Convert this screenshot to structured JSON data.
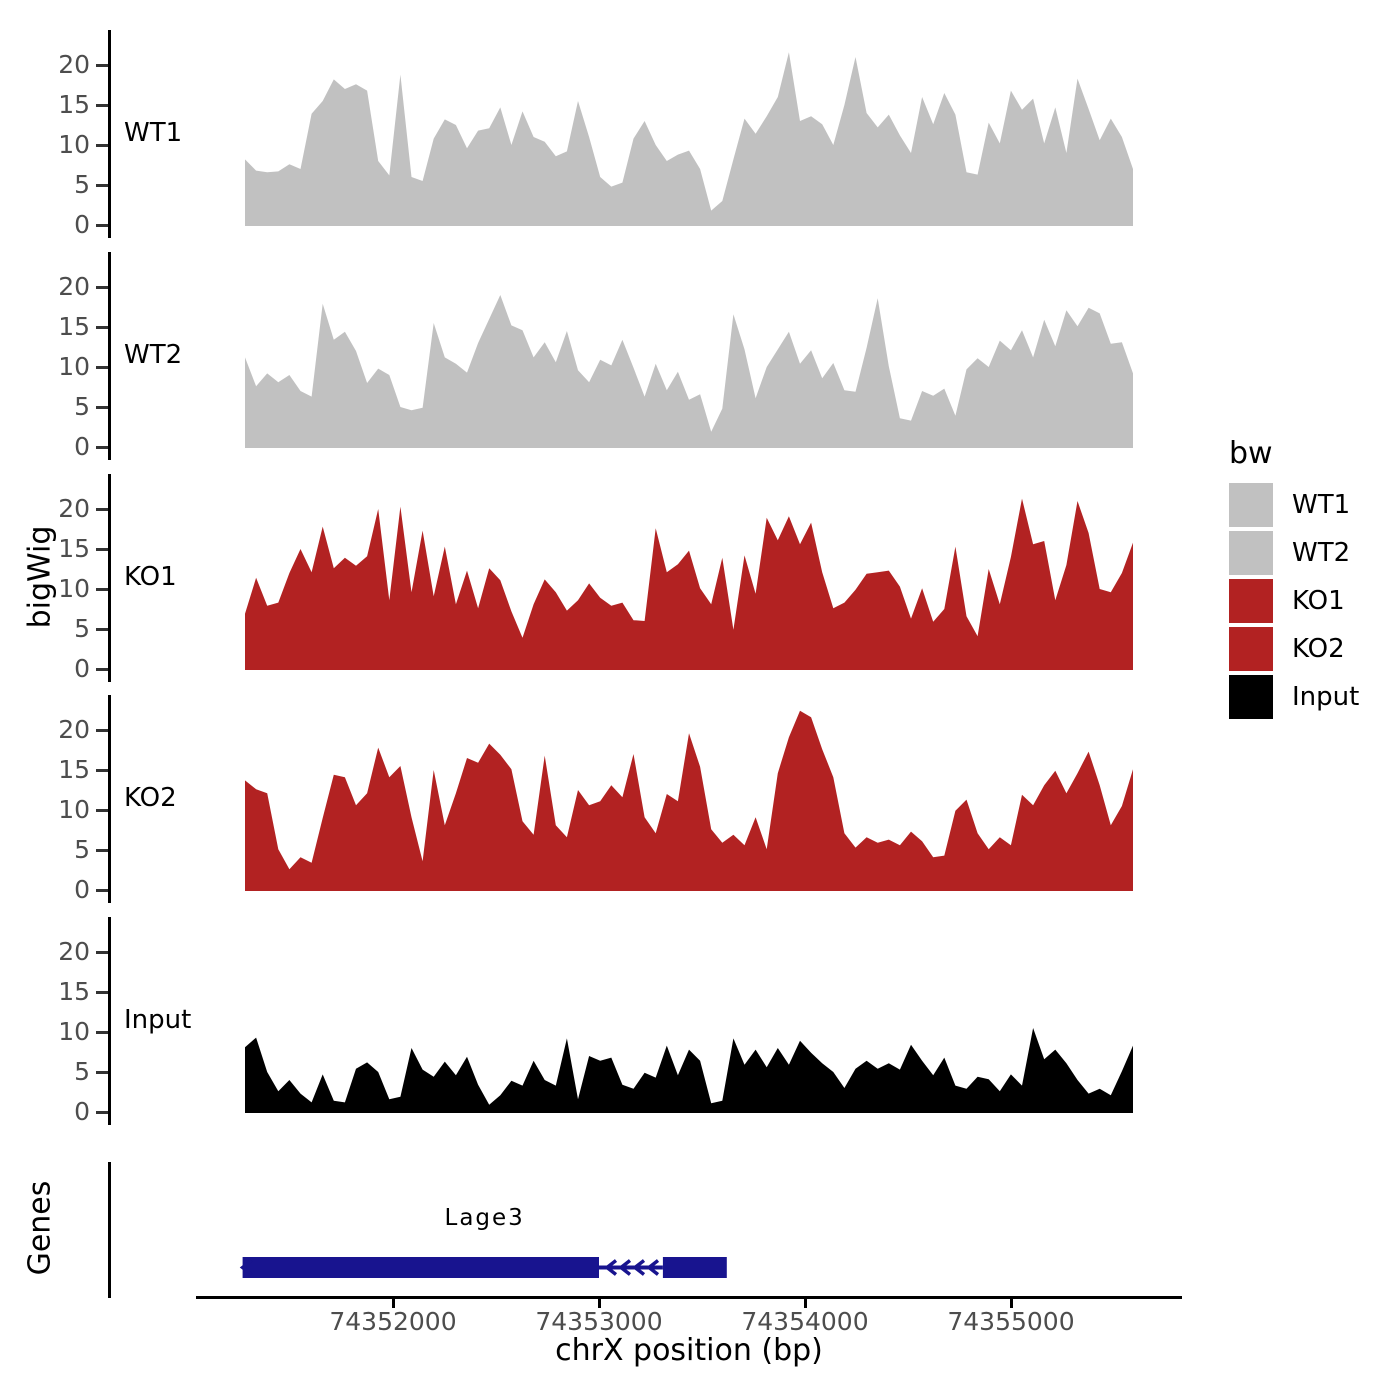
{
  "figure": {
    "ylab": "bigWig",
    "genes_lab": "Genes",
    "xlab": "chrX position (bp)"
  },
  "legend": {
    "title": "bw",
    "items": [
      {
        "label": "WT1",
        "color": "#C1C1C1"
      },
      {
        "label": "WT2",
        "color": "#C1C1C1"
      },
      {
        "label": "KO1",
        "color": "#B22222"
      },
      {
        "label": "KO2",
        "color": "#B22222"
      },
      {
        "label": "Input",
        "color": "#000000"
      }
    ]
  },
  "axis": {
    "y_ticks": [
      0,
      5,
      10,
      15,
      20
    ],
    "x_ticks": [
      74352000,
      74353000,
      74354000,
      74355000
    ]
  },
  "chart_data": {
    "type": "area",
    "title": "",
    "xlabel": "chrX position (bp)",
    "ylabel": "bigWig",
    "chromosome": "chrX",
    "x_range_bp": [
      74351280,
      74355590
    ],
    "ylim": [
      0,
      20
    ],
    "grid": false,
    "legend_position": "right",
    "facets": [
      "WT1",
      "WT2",
      "KO1",
      "KO2",
      "Input",
      "Genes"
    ],
    "series": [
      {
        "name": "WT1",
        "color": "#C1C1C1",
        "values": [
          8.2,
          6.8,
          6.6,
          6.7,
          7.6,
          7.0,
          13.9,
          15.5,
          18.2,
          17.0,
          17.6,
          16.8,
          8.0,
          6.2,
          18.8,
          6.0,
          5.5,
          10.8,
          13.2,
          12.5,
          9.6,
          11.8,
          12.1,
          14.7,
          10.0,
          14.2,
          11.0,
          10.4,
          8.6,
          9.2,
          15.5,
          11.0,
          6.0,
          4.8,
          5.3,
          10.8,
          13.0,
          10.0,
          8.0,
          8.8,
          9.3,
          7.0,
          1.8,
          3.0,
          8.2,
          13.3,
          11.4,
          13.6,
          16.0,
          21.6,
          13.0,
          13.6,
          12.6,
          10.0,
          15.0,
          21.0,
          14.0,
          12.2,
          13.8,
          11.2,
          9.0,
          16.0,
          12.6,
          16.5,
          13.8,
          6.6,
          6.3,
          12.8,
          10.2,
          16.8,
          14.4,
          15.8,
          10.2,
          14.7,
          9.0,
          18.3,
          14.5,
          10.6,
          13.3,
          11.0,
          7.0
        ]
      },
      {
        "name": "WT2",
        "color": "#C1C1C1",
        "values": [
          11.2,
          7.6,
          9.2,
          8.1,
          9.0,
          7.0,
          6.3,
          17.9,
          13.4,
          14.4,
          12.0,
          8.0,
          9.8,
          9.0,
          5.0,
          4.6,
          4.9,
          15.5,
          11.2,
          10.4,
          9.3,
          13.0,
          16.0,
          19.0,
          15.2,
          14.6,
          11.2,
          13.1,
          10.6,
          14.5,
          9.6,
          8.1,
          10.9,
          10.2,
          13.4,
          9.9,
          6.3,
          10.4,
          7.1,
          9.4,
          5.9,
          6.6,
          1.9,
          4.8,
          16.6,
          12.2,
          6.1,
          10.0,
          12.2,
          14.4,
          10.4,
          12.1,
          8.6,
          10.5,
          7.1,
          6.9,
          12.4,
          18.6,
          10.1,
          3.6,
          3.3,
          7.0,
          6.4,
          7.3,
          3.9,
          9.7,
          11.1,
          10.0,
          13.3,
          12.1,
          14.6,
          11.2,
          15.9,
          12.6,
          17.1,
          15.1,
          17.4,
          16.7,
          12.9,
          13.1,
          9.2
        ]
      },
      {
        "name": "KO1",
        "color": "#B22222",
        "values": [
          6.9,
          11.4,
          7.9,
          8.3,
          12.0,
          15.0,
          12.1,
          17.8,
          12.6,
          13.9,
          12.9,
          14.1,
          20.0,
          8.6,
          20.3,
          9.6,
          17.3,
          9.1,
          15.3,
          8.1,
          12.3,
          7.6,
          12.6,
          11.1,
          7.2,
          3.9,
          8.1,
          11.2,
          9.6,
          7.3,
          8.6,
          10.7,
          8.9,
          7.9,
          8.3,
          6.1,
          6.0,
          17.6,
          12.1,
          13.1,
          14.8,
          10.1,
          8.1,
          13.9,
          4.9,
          14.2,
          9.4,
          18.9,
          16.1,
          19.1,
          15.6,
          18.3,
          12.1,
          7.6,
          8.3,
          9.9,
          11.9,
          12.1,
          12.3,
          10.3,
          6.3,
          10.1,
          5.9,
          7.5,
          15.3,
          6.6,
          4.1,
          12.5,
          8.1,
          14.0,
          21.3,
          15.6,
          16.0,
          8.6,
          13.0,
          21.0,
          17.0,
          10.0,
          9.6,
          12.0,
          15.8
        ]
      },
      {
        "name": "KO2",
        "color": "#B22222",
        "values": [
          13.7,
          12.6,
          12.1,
          5.1,
          2.6,
          4.1,
          3.4,
          9.0,
          14.4,
          14.1,
          10.6,
          12.1,
          17.8,
          14.1,
          15.5,
          9.1,
          3.6,
          15.0,
          8.1,
          12.1,
          16.5,
          15.9,
          18.3,
          16.9,
          15.1,
          8.6,
          6.9,
          16.8,
          8.1,
          6.6,
          12.5,
          10.6,
          11.1,
          13.1,
          11.6,
          17.0,
          9.1,
          7.1,
          12.0,
          11.1,
          19.6,
          15.4,
          7.6,
          5.9,
          6.9,
          5.6,
          9.1,
          5.1,
          14.6,
          19.1,
          22.4,
          21.6,
          17.6,
          14.1,
          7.1,
          5.3,
          6.6,
          5.9,
          6.3,
          5.6,
          7.3,
          6.1,
          4.1,
          4.3,
          9.9,
          11.3,
          7.1,
          5.1,
          6.6,
          5.6,
          11.9,
          10.6,
          13.1,
          14.9,
          12.1,
          14.6,
          17.3,
          13.1,
          8.1,
          10.5,
          15.1
        ]
      },
      {
        "name": "Input",
        "color": "#000000",
        "values": [
          8.1,
          9.3,
          5.0,
          2.6,
          4.0,
          2.3,
          1.2,
          4.7,
          1.4,
          1.2,
          5.4,
          6.2,
          5.0,
          1.6,
          1.9,
          8.0,
          5.3,
          4.4,
          6.3,
          4.6,
          6.9,
          3.4,
          0.9,
          2.1,
          3.9,
          3.3,
          6.4,
          4.0,
          3.3,
          9.2,
          1.6,
          7.0,
          6.4,
          6.8,
          3.4,
          2.9,
          4.9,
          4.3,
          8.3,
          4.6,
          7.8,
          6.4,
          1.1,
          1.4,
          9.2,
          5.9,
          7.8,
          5.6,
          8.0,
          5.9,
          8.9,
          7.4,
          6.1,
          5.0,
          3.0,
          5.4,
          6.4,
          5.4,
          6.1,
          5.3,
          8.4,
          6.4,
          4.6,
          6.8,
          3.3,
          2.9,
          4.4,
          4.1,
          2.6,
          4.7,
          3.3,
          10.5,
          6.6,
          7.8,
          6.1,
          4.0,
          2.3,
          2.9,
          2.1,
          5.1,
          8.3
        ]
      }
    ]
  },
  "genes": {
    "track_label": "Genes",
    "gene": {
      "name": "Lage3",
      "strand": "-",
      "color": "#18148F",
      "exons_bp": [
        [
          74351270,
          74353000
        ],
        [
          74353310,
          74353620
        ]
      ]
    }
  }
}
